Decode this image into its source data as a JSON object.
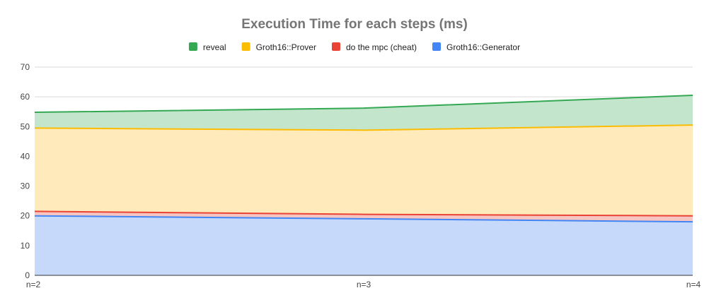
{
  "chart_data": {
    "type": "area",
    "stacked": true,
    "title": "Execution Time for each steps (ms)",
    "xlabel": "",
    "ylabel": "",
    "categories": [
      "n=2",
      "n=3",
      "n=4"
    ],
    "ylim": [
      0,
      70
    ],
    "yticks": [
      0,
      10,
      20,
      30,
      40,
      50,
      60,
      70
    ],
    "grid": true,
    "legend_position": "top",
    "series": [
      {
        "name": "Groth16::Generator",
        "values": [
          20,
          19,
          18
        ],
        "color": "#4285f4",
        "fill": "#c6d9fa"
      },
      {
        "name": "do the mpc (cheat)",
        "values": [
          1.5,
          1.5,
          2
        ],
        "color": "#ea4335",
        "fill": "#f7c5c1"
      },
      {
        "name": "Groth16::Prover",
        "values": [
          28,
          28.3,
          30.5
        ],
        "color": "#fbbc04",
        "fill": "#feeaba"
      },
      {
        "name": "reveal",
        "values": [
          5.3,
          7.4,
          10
        ],
        "color": "#34a853",
        "fill": "#c3e5cb"
      }
    ],
    "legend_order": [
      "reveal",
      "Groth16::Prover",
      "do the mpc (cheat)",
      "Groth16::Generator"
    ]
  }
}
